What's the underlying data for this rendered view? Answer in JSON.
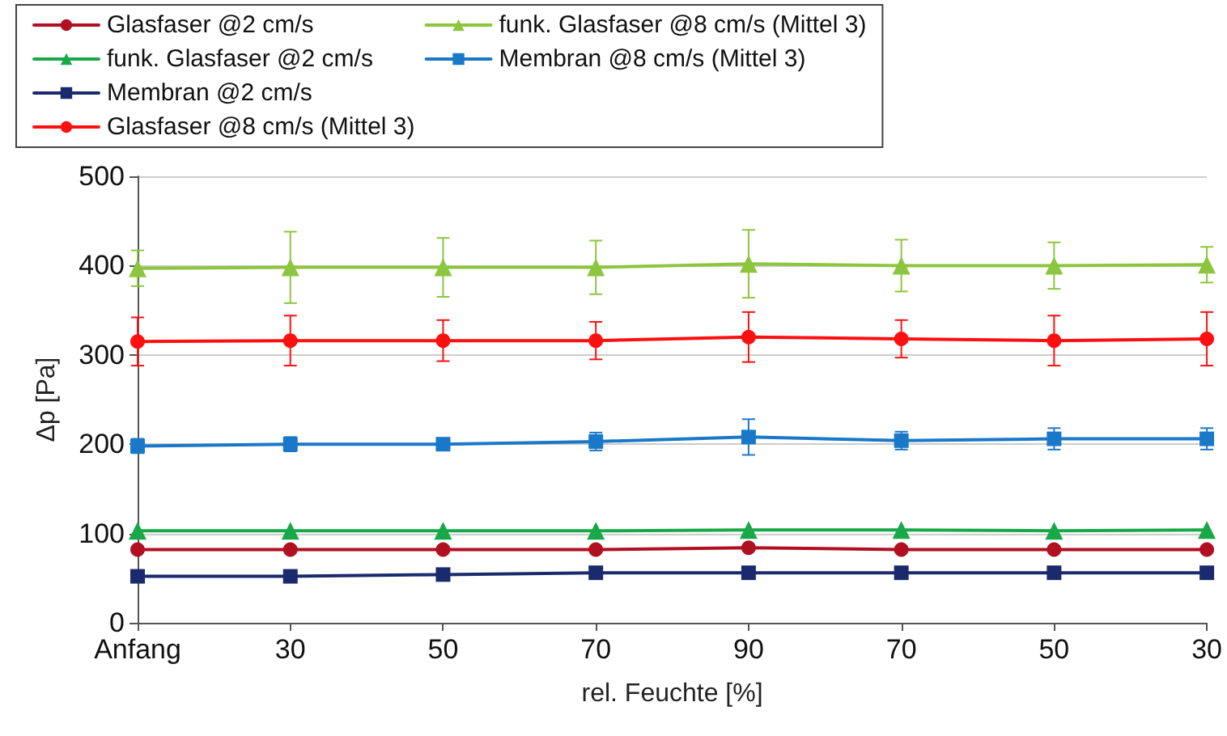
{
  "chart_data": {
    "type": "line",
    "xlabel": "rel. Feuchte [%]",
    "ylabel": "Δp [Pa]",
    "categories": [
      "Anfang",
      "30",
      "50",
      "70",
      "90",
      "70",
      "50",
      "30"
    ],
    "ylim": [
      0,
      500
    ],
    "yticks": [
      0,
      100,
      200,
      300,
      400,
      500
    ],
    "grid": "y",
    "legend": "top",
    "line_style": "solid",
    "series": [
      {
        "name": "Glasfaser @2 cm/s",
        "color": "#b01020",
        "marker": "circle",
        "values": [
          82,
          82,
          82,
          82,
          84,
          82,
          82,
          82
        ]
      },
      {
        "name": "Glasfaser @8 cm/s (Mittel 3)",
        "color": "#ff1010",
        "marker": "circle",
        "values": [
          315,
          316,
          316,
          316,
          320,
          318,
          316,
          318
        ],
        "errors": [
          27,
          28,
          23,
          21,
          28,
          21,
          28,
          30
        ]
      },
      {
        "name": "funk. Glasfaser @2 cm/s",
        "color": "#18a848",
        "marker": "triangle",
        "values": [
          103,
          103,
          103,
          103,
          104,
          104,
          103,
          104
        ]
      },
      {
        "name": "funk. Glasfaser @8 cm/s (Mittel 3)",
        "color": "#8cc63e",
        "marker": "triangle",
        "values": [
          397,
          398,
          398,
          398,
          402,
          400,
          400,
          401
        ],
        "errors": [
          20,
          40,
          33,
          30,
          38,
          29,
          26,
          20
        ]
      },
      {
        "name": "Membran @2 cm/s",
        "color": "#1a2a6c",
        "marker": "square",
        "values": [
          52,
          52,
          54,
          56,
          56,
          56,
          56,
          56
        ]
      },
      {
        "name": "Membran @8 cm/s (Mittel 3)",
        "color": "#1a78c8",
        "marker": "square",
        "values": [
          198,
          200,
          200,
          203,
          208,
          204,
          206,
          206
        ],
        "errors": [
          8,
          8,
          6,
          10,
          20,
          10,
          12,
          12
        ]
      }
    ]
  }
}
